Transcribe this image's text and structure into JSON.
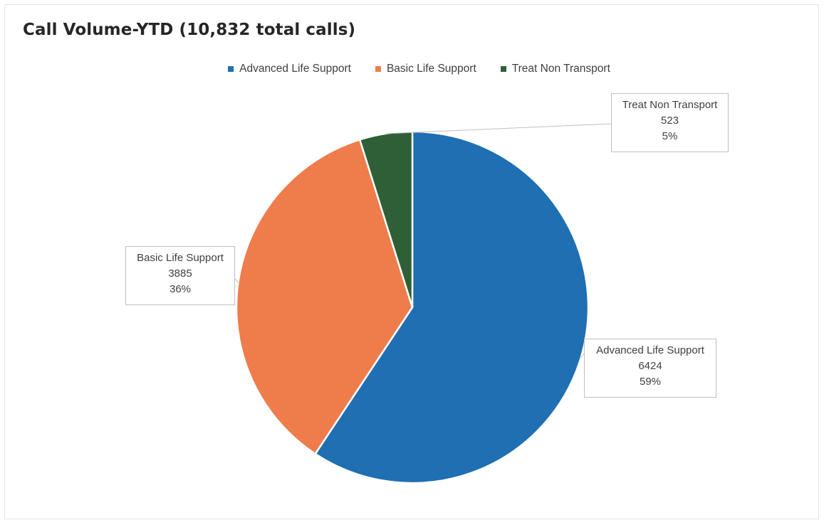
{
  "chart_data": {
    "type": "pie",
    "title": "Call Volume-YTD (10,832 total calls)",
    "legend_position": "top",
    "categories": [
      "Advanced Life Support",
      "Basic Life Support",
      "Treat Non Transport"
    ],
    "values": [
      6424,
      3885,
      523
    ],
    "percent_labels": [
      "59%",
      "36%",
      "5%"
    ],
    "value_labels": [
      "6424",
      "3885",
      "523"
    ],
    "colors": [
      "#1f6fb2",
      "#ee7d4b",
      "#2f5f37"
    ]
  }
}
